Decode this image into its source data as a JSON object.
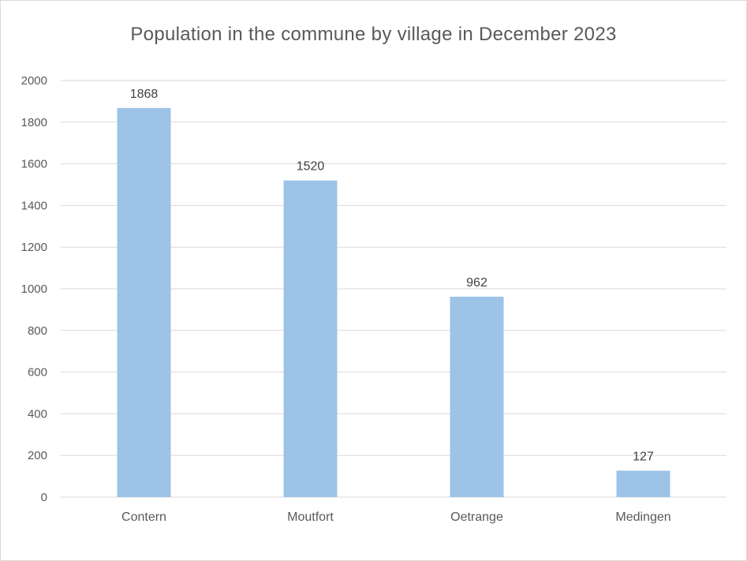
{
  "chart_data": {
    "type": "bar",
    "title": "Population in the commune by village in December 2023",
    "categories": [
      "Contern",
      "Moutfort",
      "Oetrange",
      "Medingen"
    ],
    "values": [
      1868,
      1520,
      962,
      127
    ],
    "data_labels": [
      "1868",
      "1520",
      "962",
      "127"
    ],
    "ylim": [
      0,
      2000
    ],
    "yticks": [
      0,
      200,
      400,
      600,
      800,
      1000,
      1200,
      1400,
      1600,
      1800,
      2000
    ],
    "grid": true,
    "legend": "none",
    "bar_color": "#9dc3e6",
    "gridline_color": "#d9d9d9"
  }
}
